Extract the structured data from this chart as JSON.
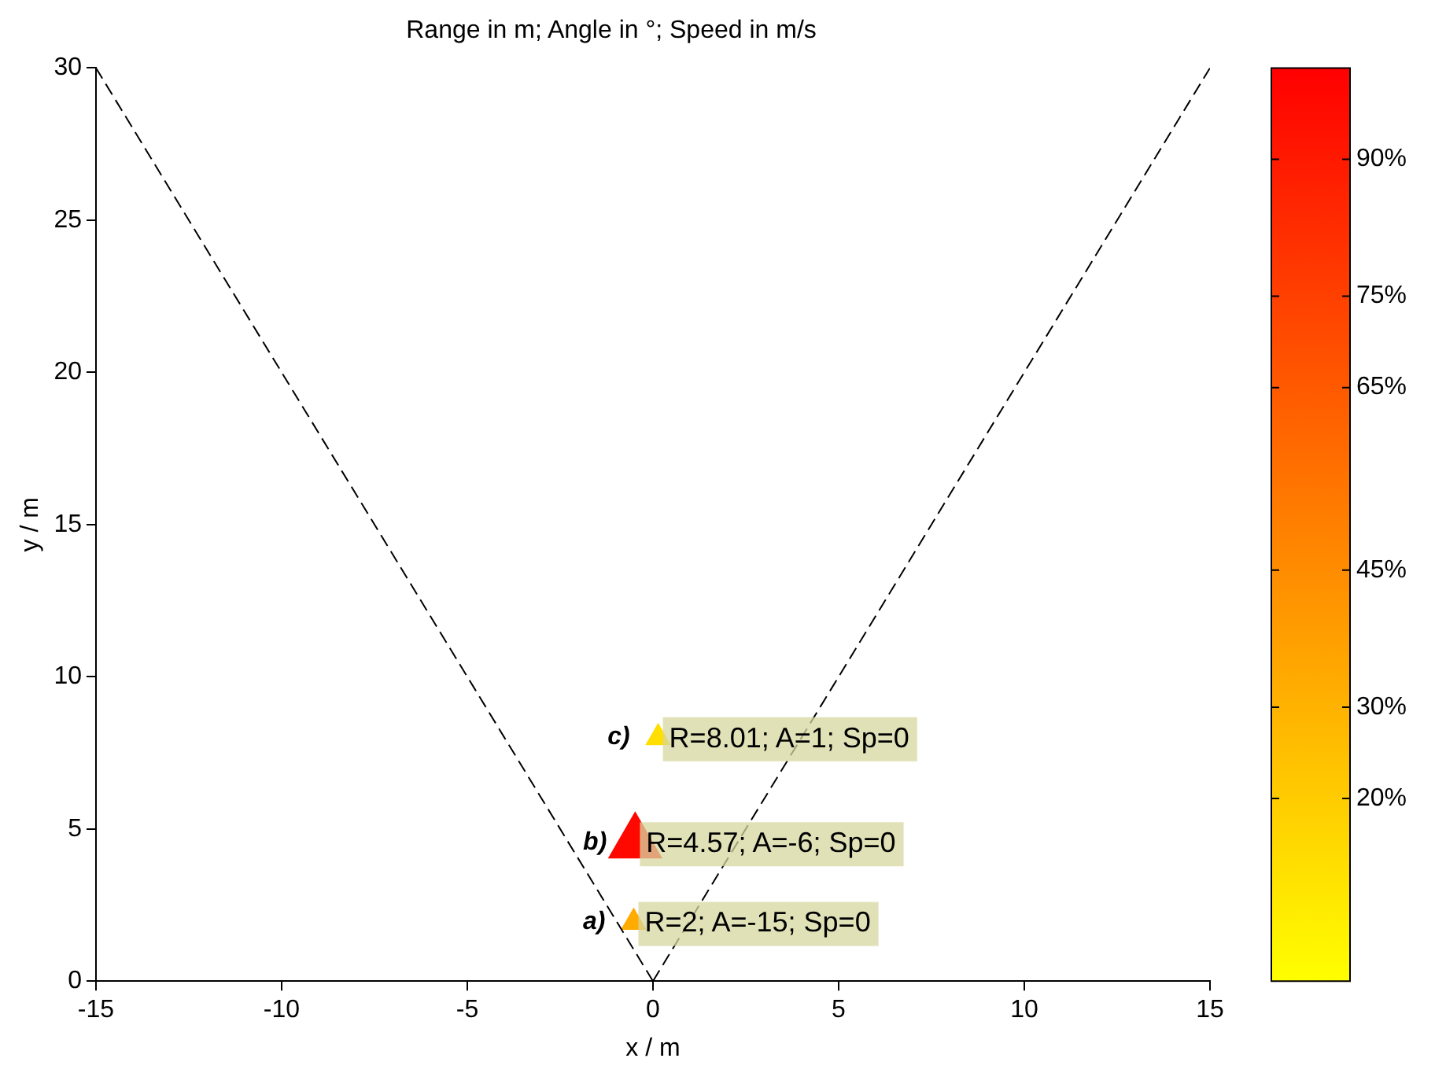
{
  "chart_data": {
    "type": "bubble",
    "title": "Range in m; Angle in °; Speed in m/s",
    "xlabel": "x / m",
    "ylabel": "y / m",
    "xlim": [
      -15,
      15
    ],
    "xticks": [
      -15,
      -10,
      -5,
      0,
      5,
      10,
      15
    ],
    "ylim": [
      0,
      30
    ],
    "yticks": [
      0,
      5,
      10,
      15,
      20,
      25,
      30
    ],
    "grid": false,
    "legend": false,
    "marker": "triangle",
    "clim": [
      0,
      100
    ],
    "cticks": [
      {
        "value": 20,
        "label": "20%"
      },
      {
        "value": 30,
        "label": "30%"
      },
      {
        "value": 45,
        "label": "45%"
      },
      {
        "value": 65,
        "label": "65%"
      },
      {
        "value": 75,
        "label": "75%"
      },
      {
        "value": 90,
        "label": "90%"
      }
    ],
    "series": [
      {
        "type": "line",
        "color": "#000000",
        "line_style": "dashed",
        "marker": "none",
        "x": [
          0,
          -15
        ],
        "values": [
          0,
          30
        ]
      },
      {
        "type": "line",
        "color": "#000000",
        "line_style": "dashed",
        "marker": "none",
        "x": [
          0,
          15
        ],
        "values": [
          0,
          30
        ]
      },
      {
        "x": [
          -0.52,
          -0.48,
          0.14
        ],
        "values": [
          1.93,
          4.55,
          8.0
        ],
        "sizes": [
          0.2,
          1,
          0.2
        ],
        "cvalues": [
          33,
          97,
          13
        ],
        "colors": [
          "#ffab00",
          "#ff0800",
          "#ffde00"
        ]
      }
    ],
    "annotations": [
      {
        "text": "a)",
        "x": -0.52,
        "y": 1.93
      },
      {
        "text": "R=2; A=-15; Sp=0",
        "x": -0.52,
        "y": 1.93
      },
      {
        "text": "b)",
        "x": -0.48,
        "y": 4.55
      },
      {
        "text": "R=4.57; A=-6; Sp=0",
        "x": -0.48,
        "y": 4.55
      },
      {
        "text": "c)",
        "x": 0.14,
        "y": 8.0
      },
      {
        "text": "R=8.01; A=1; Sp=0",
        "x": 0.14,
        "y": 8.0
      }
    ]
  }
}
